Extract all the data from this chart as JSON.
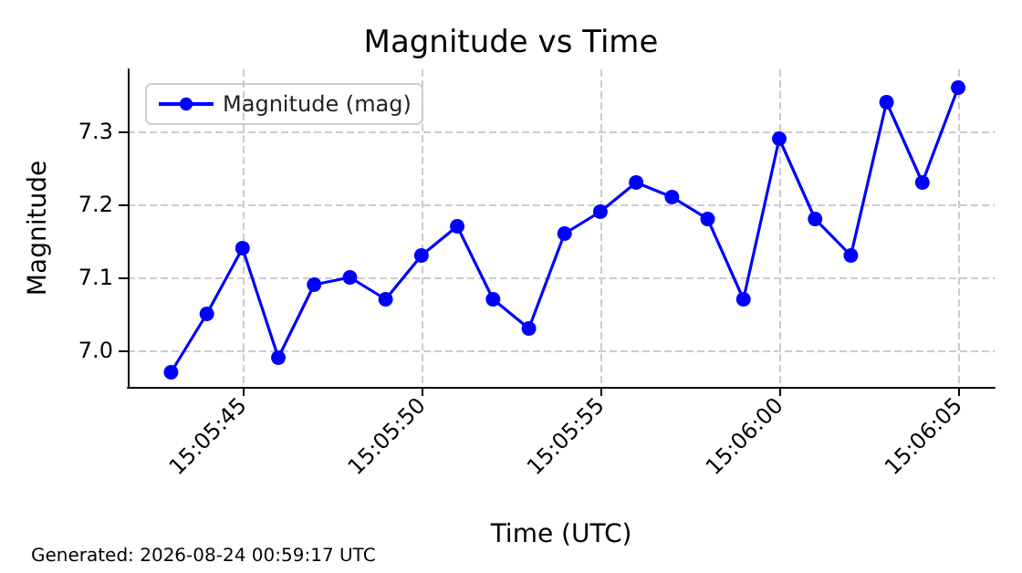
{
  "chart_data": {
    "type": "line",
    "title": "Magnitude vs Time",
    "xlabel": "Time (UTC)",
    "ylabel": "Magnitude",
    "x": [
      15.095278,
      15.095556,
      15.095833,
      15.096111,
      15.096389,
      15.096667,
      15.096944,
      15.097222,
      15.0975,
      15.097778,
      15.098056,
      15.098333,
      15.098611,
      15.098889,
      15.099167,
      15.099444,
      15.099722,
      15.1,
      15.100278,
      15.100556,
      15.100833,
      15.101111,
      15.101389
    ],
    "series": [
      {
        "name": "Magnitude (mag)",
        "color": "#0000ff",
        "values": [
          6.97,
          7.05,
          7.14,
          6.99,
          7.09,
          7.1,
          7.07,
          7.13,
          7.17,
          7.07,
          7.03,
          7.16,
          7.19,
          7.23,
          7.21,
          7.18,
          7.07,
          7.29,
          7.18,
          7.13,
          7.34,
          7.23,
          7.36
        ]
      }
    ],
    "xlim": [
      15.094942,
      15.101672
    ],
    "ylim": [
      6.95,
      7.385
    ],
    "xticks": [
      {
        "value": 15.095833,
        "label": "15:05:45"
      },
      {
        "value": 15.097222,
        "label": "15:05:50"
      },
      {
        "value": 15.098611,
        "label": "15:05:55"
      },
      {
        "value": 15.1,
        "label": "15:06:00"
      },
      {
        "value": 15.101389,
        "label": "15:06:05"
      }
    ],
    "yticks": [
      {
        "value": 7.0,
        "label": "7.0"
      },
      {
        "value": 7.1,
        "label": "7.1"
      },
      {
        "value": 7.2,
        "label": "7.2"
      },
      {
        "value": 7.3,
        "label": "7.3"
      }
    ],
    "grid": true,
    "legend": "top left",
    "marker": "circle",
    "line_style": "solid",
    "annotations": [
      "Generated: 2026-08-24 00:59:17 UTC"
    ]
  }
}
